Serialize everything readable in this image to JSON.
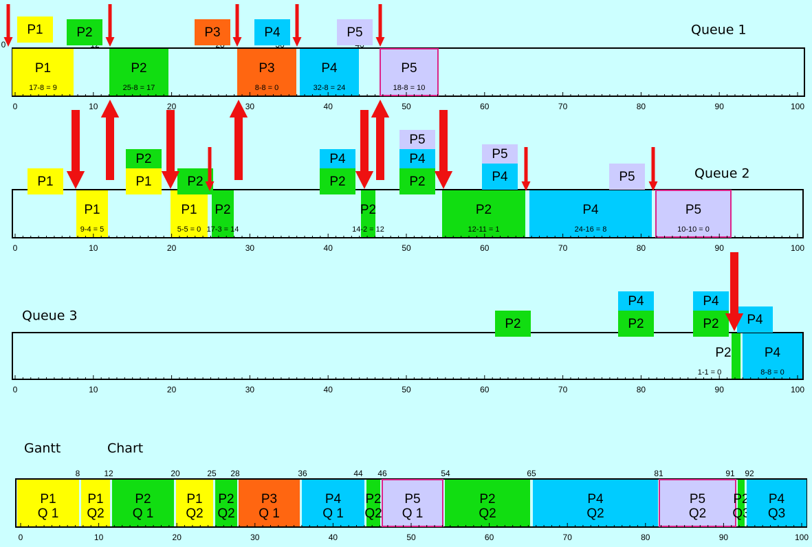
{
  "axis_ticks": [
    "0",
    "10",
    "20",
    "30",
    "40",
    "50",
    "60",
    "70",
    "80",
    "90",
    "100"
  ],
  "queues": [
    {
      "label": "Queue 1",
      "markers": [
        "0",
        "12",
        "28",
        "36",
        "46"
      ],
      "pending": [
        [
          "P1"
        ],
        [
          "P2"
        ],
        [
          "P3"
        ],
        [
          "P4"
        ],
        [
          "P5"
        ]
      ],
      "blocks": [
        {
          "label": "P1",
          "note": "17-8 = 9"
        },
        {
          "label": "P2",
          "note": "25-8 = 17"
        },
        {
          "label": "P3",
          "note": "8-8 = 0"
        },
        {
          "label": "P4",
          "note": "32-8 = 24"
        },
        {
          "label": "P5",
          "note": "18-8 = 10"
        }
      ]
    },
    {
      "label": "Queue 2",
      "markers": [],
      "pending": [
        [
          "P1"
        ],
        [
          "P1",
          "P2"
        ],
        [
          "P2"
        ],
        [
          "P2",
          "P4"
        ],
        [
          "P2",
          "P4",
          "P5"
        ],
        [
          "P4",
          "P5"
        ],
        [
          "P5"
        ]
      ],
      "blocks": [
        {
          "label": "P1",
          "note": "9-4 = 5"
        },
        {
          "label": "P1",
          "note": "5-5 = 0"
        },
        {
          "label": "P2",
          "note": "17-3 = 14"
        },
        {
          "label": "P2",
          "note": "14-2 = 12"
        },
        {
          "label": "P2",
          "note": "12-11 = 1"
        },
        {
          "label": "P4",
          "note": "24-16 = 8"
        },
        {
          "label": "P5",
          "note": "10-10 = 0"
        }
      ]
    },
    {
      "label": "Queue 3",
      "markers": [],
      "pending": [
        [
          "P2"
        ],
        [
          "P2",
          "P4"
        ],
        [
          "P2",
          "P4"
        ],
        [
          "P4"
        ]
      ],
      "blocks": [
        {
          "label": "P2",
          "note": "1-1 = 0"
        },
        {
          "label": "P4",
          "note": "8-8 = 0"
        }
      ]
    }
  ],
  "gantt": {
    "heading": [
      "Gantt",
      "Chart"
    ],
    "markers": [
      "8",
      "12",
      "20",
      "25",
      "28",
      "36",
      "44",
      "46",
      "54",
      "65",
      "81",
      "91",
      "92"
    ],
    "blocks": [
      {
        "process": "P1",
        "queue": "Q  1"
      },
      {
        "process": "P1",
        "queue": "Q2"
      },
      {
        "process": "P2",
        "queue": "Q  1"
      },
      {
        "process": "P1",
        "queue": "Q2"
      },
      {
        "process": "P2",
        "queue": "Q2"
      },
      {
        "process": "P3",
        "queue": "Q  1"
      },
      {
        "process": "P4",
        "queue": "Q  1"
      },
      {
        "process": "P2",
        "queue": "Q2"
      },
      {
        "process": "P5",
        "queue": "Q  1"
      },
      {
        "process": "P2",
        "queue": "Q2"
      },
      {
        "process": "P4",
        "queue": "Q2"
      },
      {
        "process": "P5",
        "queue": "Q2"
      },
      {
        "process": "P2",
        "queue": "Q3"
      },
      {
        "process": "P4",
        "queue": "Q3"
      }
    ]
  }
}
